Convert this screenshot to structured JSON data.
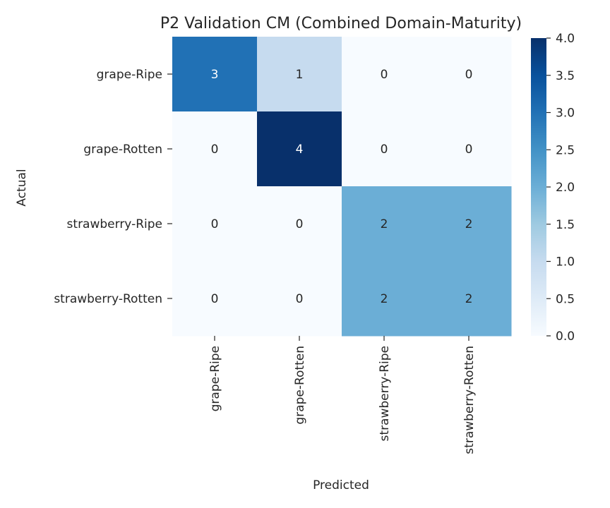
{
  "chart_data": {
    "type": "heatmap",
    "title": "P2 Validation CM (Combined Domain-Maturity)",
    "xlabel": "Predicted",
    "ylabel": "Actual",
    "x_categories": [
      "grape-Ripe",
      "grape-Rotten",
      "strawberry-Ripe",
      "strawberry-Rotten"
    ],
    "y_categories": [
      "grape-Ripe",
      "grape-Rotten",
      "strawberry-Ripe",
      "strawberry-Rotten"
    ],
    "values": [
      [
        3,
        1,
        0,
        0
      ],
      [
        0,
        4,
        0,
        0
      ],
      [
        0,
        0,
        2,
        2
      ],
      [
        0,
        0,
        2,
        2
      ]
    ],
    "colormap": "Blues",
    "colorbar": {
      "range": [
        0,
        4
      ],
      "ticks": [
        "0.0",
        "0.5",
        "1.0",
        "1.5",
        "2.0",
        "2.5",
        "3.0",
        "3.5",
        "4.0"
      ]
    }
  }
}
